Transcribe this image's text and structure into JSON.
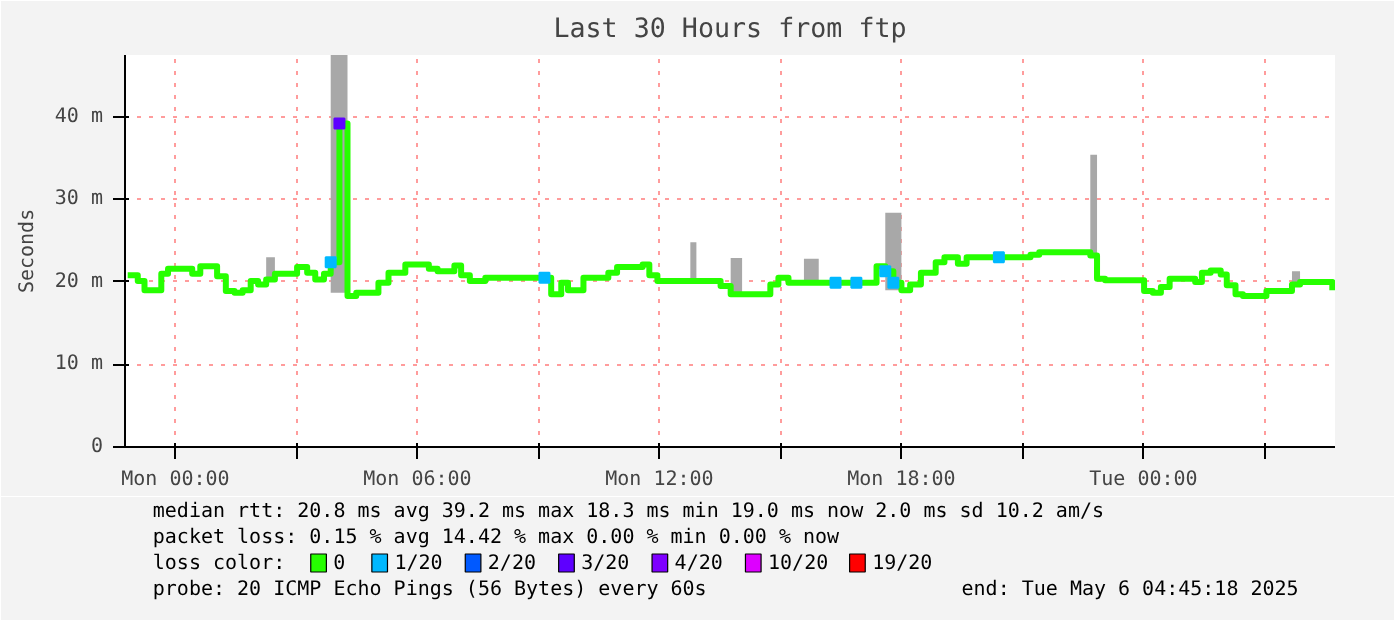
{
  "chart_data": {
    "type": "step",
    "title": "Last 30 Hours from ftp",
    "ylabel": "Seconds",
    "xlim": [
      "2025-05-04T22:45",
      "2025-05-06T04:45"
    ],
    "xticks": [
      {
        "value": "2025-05-05T00:00",
        "label": "Mon 00:00"
      },
      {
        "value": "2025-05-05T03:00",
        "label": null
      },
      {
        "value": "2025-05-05T06:00",
        "label": "Mon 06:00"
      },
      {
        "value": "2025-05-05T09:00",
        "label": null
      },
      {
        "value": "2025-05-05T12:00",
        "label": "Mon 12:00"
      },
      {
        "value": "2025-05-05T15:00",
        "label": null
      },
      {
        "value": "2025-05-05T18:00",
        "label": "Mon 18:00"
      },
      {
        "value": "2025-05-05T21:00",
        "label": null
      },
      {
        "value": "2025-05-06T00:00",
        "label": "Tue 00:00"
      },
      {
        "value": "2025-05-06T03:00",
        "label": null
      }
    ],
    "ylim": [
      0,
      47.5
    ],
    "yticks": [
      0,
      {
        "value": 10,
        "label": "10 m"
      },
      {
        "value": 20,
        "label": "20 m"
      },
      {
        "value": 30,
        "label": "30 m"
      },
      {
        "value": 40,
        "label": "40 m"
      }
    ],
    "grid": true,
    "legend": "bottom",
    "legend_title": "loss color:",
    "series": [
      {
        "name": "0",
        "color": "#26ff00",
        "x": [
          "2025-05-04T22:49",
          "2025-05-04T23:04",
          "2025-05-04T23:14",
          "2025-05-04T23:39",
          "2025-05-04T23:49",
          "2025-05-05T00:25",
          "2025-05-05T00:37",
          "2025-05-05T01:02",
          "2025-05-05T01:15",
          "2025-05-05T01:28",
          "2025-05-05T01:40",
          "2025-05-05T01:52",
          "2025-05-05T02:03",
          "2025-05-05T02:15",
          "2025-05-05T02:28",
          "2025-05-05T03:01",
          "2025-05-05T03:16",
          "2025-05-05T03:28",
          "2025-05-05T03:41",
          "2025-05-05T03:51",
          "2025-05-05T04:04",
          "2025-05-05T04:16",
          "2025-05-05T04:29",
          "2025-05-05T05:02",
          "2025-05-05T05:17",
          "2025-05-05T05:42",
          "2025-05-05T06:17",
          "2025-05-05T06:30",
          "2025-05-05T06:55",
          "2025-05-05T07:05",
          "2025-05-05T07:18",
          "2025-05-05T07:41",
          "2025-05-05T09:19",
          "2025-05-05T09:34",
          "2025-05-05T09:44",
          "2025-05-05T10:07",
          "2025-05-05T10:44",
          "2025-05-05T10:57",
          "2025-05-05T11:35",
          "2025-05-05T11:45",
          "2025-05-05T11:57",
          "2025-05-05T12:46",
          "2025-05-05T12:55",
          "2025-05-05T13:31",
          "2025-05-05T13:46",
          "2025-05-05T14:03",
          "2025-05-05T14:45",
          "2025-05-05T14:57",
          "2025-05-05T15:12",
          "2025-05-05T15:35",
          "2025-05-05T15:57",
          "2025-05-05T17:23",
          "2025-05-05T17:36",
          "2025-05-05T17:48",
          "2025-05-05T18:00",
          "2025-05-05T18:13",
          "2025-05-05T18:29",
          "2025-05-05T18:51",
          "2025-05-05T19:04",
          "2025-05-05T19:24",
          "2025-05-05T19:37",
          "2025-05-05T21:12",
          "2025-05-05T21:25",
          "2025-05-05T22:41",
          "2025-05-05T22:51",
          "2025-05-05T23:03",
          "2025-05-06T00:01",
          "2025-05-06T00:14",
          "2025-05-06T00:26",
          "2025-05-06T00:39",
          "2025-05-06T01:17",
          "2025-05-06T01:27",
          "2025-05-06T01:40",
          "2025-05-06T01:55",
          "2025-05-06T02:04",
          "2025-05-06T02:17",
          "2025-05-06T02:28",
          "2025-05-06T03:03",
          "2025-05-06T03:41",
          "2025-05-06T03:53",
          "2025-05-06T04:41"
        ],
        "values": [
          20.8,
          20.1,
          19.0,
          21.0,
          21.6,
          21.0,
          21.9,
          20.7,
          18.9,
          18.7,
          19.0,
          20.1,
          19.7,
          20.3,
          21.0,
          21.8,
          21.1,
          20.3,
          21.0,
          22.4,
          39.2,
          18.3,
          18.7,
          19.9,
          21.1,
          22.1,
          21.6,
          21.3,
          22.0,
          20.8,
          20.1,
          20.5,
          18.5,
          19.9,
          19.0,
          20.5,
          21.1,
          21.8,
          22.1,
          20.8,
          20.1,
          20.1,
          20.1,
          19.5,
          18.5,
          18.5,
          19.7,
          20.5,
          19.9,
          19.9,
          19.9,
          21.9,
          21.3,
          19.9,
          19.0,
          19.7,
          21.1,
          22.4,
          23.0,
          22.2,
          23.0,
          23.3,
          23.6,
          23.2,
          20.4,
          20.2,
          18.9,
          18.7,
          19.4,
          20.4,
          20.0,
          21.1,
          21.4,
          20.9,
          19.6,
          18.5,
          18.3,
          18.9,
          19.7,
          20.0,
          19.0
        ],
        "lower": [
          20.8,
          20.1,
          19.0,
          21.0,
          21.6,
          21.0,
          21.9,
          20.7,
          18.9,
          18.7,
          19.0,
          20.1,
          19.7,
          20.3,
          21.0,
          21.8,
          21.1,
          20.3,
          21.0,
          18.7,
          18.7,
          18.3,
          18.7,
          19.9,
          21.1,
          22.1,
          21.6,
          21.3,
          22.0,
          20.8,
          20.1,
          20.5,
          18.5,
          19.9,
          19.0,
          20.5,
          21.1,
          21.8,
          22.1,
          20.8,
          20.1,
          20.1,
          20.1,
          19.5,
          18.5,
          18.5,
          19.7,
          20.5,
          19.9,
          19.9,
          19.9,
          21.9,
          19.0,
          19.0,
          19.0,
          19.7,
          21.1,
          22.4,
          23.0,
          22.2,
          23.0,
          23.3,
          23.6,
          23.2,
          20.4,
          20.2,
          18.9,
          18.7,
          19.4,
          20.4,
          20.0,
          21.1,
          21.4,
          20.9,
          19.6,
          18.5,
          18.3,
          18.9,
          19.7,
          20.0,
          19.0
        ],
        "upper": [
          20.8,
          20.1,
          19.0,
          21.0,
          21.6,
          21.0,
          21.9,
          20.7,
          18.9,
          18.7,
          19.0,
          20.1,
          19.7,
          23.0,
          21.0,
          21.8,
          21.1,
          20.3,
          21.0,
          47.5,
          47.5,
          18.3,
          18.7,
          19.9,
          21.1,
          22.1,
          21.6,
          21.3,
          22.0,
          20.8,
          20.1,
          20.5,
          18.5,
          19.9,
          19.0,
          20.5,
          21.1,
          21.8,
          22.1,
          20.8,
          20.1,
          24.8,
          20.1,
          19.5,
          22.9,
          18.5,
          19.7,
          20.5,
          19.9,
          22.8,
          19.9,
          21.9,
          28.4,
          28.4,
          19.0,
          19.7,
          21.1,
          22.4,
          23.0,
          22.2,
          23.0,
          23.3,
          23.6,
          35.4,
          20.4,
          20.2,
          18.9,
          18.7,
          19.4,
          20.4,
          20.0,
          21.1,
          21.4,
          20.9,
          19.6,
          18.5,
          18.3,
          18.9,
          21.3,
          20.0,
          19.0
        ]
      },
      {
        "name": "1/20",
        "type": "scatter",
        "color": "#00b8ff",
        "x": [
          "2025-05-05T03:51",
          "2025-05-05T09:09",
          "2025-05-05T16:22",
          "2025-05-05T16:53",
          "2025-05-05T17:36",
          "2025-05-05T17:48",
          "2025-05-05T20:25"
        ],
        "values": [
          22.4,
          20.5,
          19.9,
          19.9,
          21.3,
          19.9,
          23.0
        ]
      },
      {
        "name": "2/20",
        "type": "scatter",
        "color": "#0059ff"
      },
      {
        "name": "3/20",
        "type": "scatter",
        "color": "#5e00ff",
        "x": [
          "2025-05-05T04:04"
        ],
        "values": [
          39.2
        ]
      },
      {
        "name": "4/20",
        "type": "scatter",
        "color": "#7e00ff"
      },
      {
        "name": "10/20",
        "type": "scatter",
        "color": "#dd00ff"
      },
      {
        "name": "19/20",
        "type": "scatter",
        "color": "#ff0000"
      }
    ],
    "annotations": [
      "median rtt:  20.8 ms avg  39.2 ms max  18.3 ms min  19.0 ms now  2.0 ms sd  10.2   am/s",
      "packet loss: 0.15 % avg  14.42 % max  0.00 % min  0.00 % now",
      "probe:        20 ICMP Echo Pings (56 Bytes) every 60s",
      "end: Tue May  6 04:45:18 2025"
    ]
  }
}
